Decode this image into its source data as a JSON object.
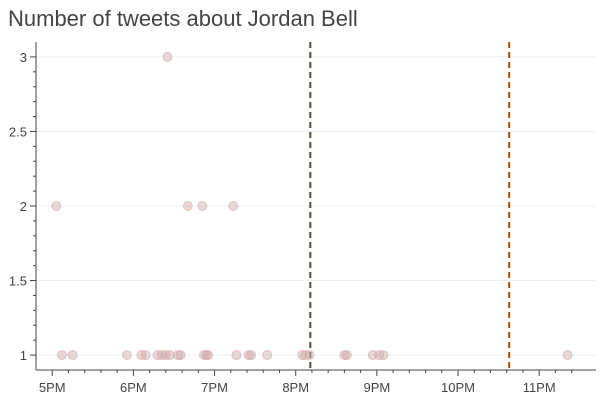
{
  "chart_data": {
    "type": "scatter",
    "title": "Number of tweets about Jordan Bell",
    "xlabel": "",
    "ylabel": "",
    "xlim": [
      16.8,
      23.7
    ],
    "ylim": [
      0.9,
      3.1
    ],
    "x_ticks": [
      {
        "value": 17,
        "label": "5PM"
      },
      {
        "value": 18,
        "label": "6PM"
      },
      {
        "value": 19,
        "label": "7PM"
      },
      {
        "value": 20,
        "label": "8PM"
      },
      {
        "value": 21,
        "label": "9PM"
      },
      {
        "value": 22,
        "label": "10PM"
      },
      {
        "value": 23,
        "label": "11PM"
      }
    ],
    "y_ticks": [
      {
        "value": 1,
        "label": "1"
      },
      {
        "value": 1.5,
        "label": "1.5"
      },
      {
        "value": 2,
        "label": "2"
      },
      {
        "value": 2.5,
        "label": "2.5"
      },
      {
        "value": 3,
        "label": "3"
      }
    ],
    "grid": true,
    "marker_color": "#cfa8a8",
    "points": [
      {
        "x": 17.05,
        "y": 2
      },
      {
        "x": 17.12,
        "y": 1
      },
      {
        "x": 17.25,
        "y": 1
      },
      {
        "x": 17.92,
        "y": 1
      },
      {
        "x": 18.1,
        "y": 1
      },
      {
        "x": 18.15,
        "y": 1
      },
      {
        "x": 18.3,
        "y": 1
      },
      {
        "x": 18.35,
        "y": 1
      },
      {
        "x": 18.4,
        "y": 1
      },
      {
        "x": 18.42,
        "y": 3
      },
      {
        "x": 18.45,
        "y": 1
      },
      {
        "x": 18.55,
        "y": 1
      },
      {
        "x": 18.58,
        "y": 1
      },
      {
        "x": 18.67,
        "y": 2
      },
      {
        "x": 18.85,
        "y": 2
      },
      {
        "x": 18.87,
        "y": 1
      },
      {
        "x": 18.9,
        "y": 1
      },
      {
        "x": 18.92,
        "y": 1
      },
      {
        "x": 19.23,
        "y": 2
      },
      {
        "x": 19.27,
        "y": 1
      },
      {
        "x": 19.42,
        "y": 1
      },
      {
        "x": 19.45,
        "y": 1
      },
      {
        "x": 19.65,
        "y": 1
      },
      {
        "x": 20.08,
        "y": 1
      },
      {
        "x": 20.12,
        "y": 1
      },
      {
        "x": 20.17,
        "y": 1
      },
      {
        "x": 20.6,
        "y": 1
      },
      {
        "x": 20.63,
        "y": 1
      },
      {
        "x": 20.95,
        "y": 1
      },
      {
        "x": 21.03,
        "y": 1
      },
      {
        "x": 21.08,
        "y": 1
      },
      {
        "x": 23.35,
        "y": 1
      }
    ],
    "vertical_lines": [
      {
        "x": 20.18,
        "color": "#4d4d3a",
        "style": "dashed"
      },
      {
        "x": 22.63,
        "color": "#b34700",
        "style": "dashed"
      }
    ]
  }
}
